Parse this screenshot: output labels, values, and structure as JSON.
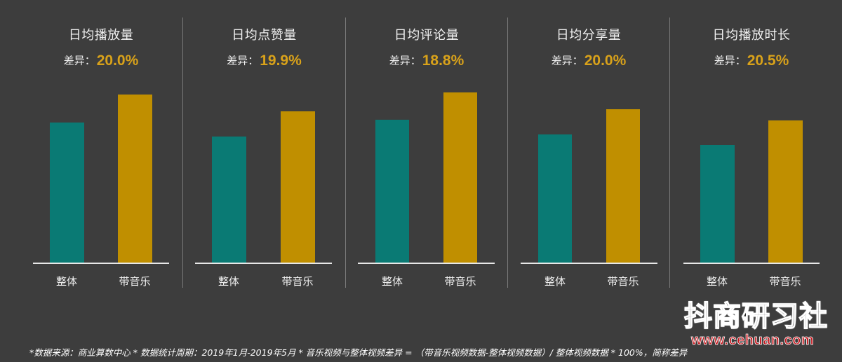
{
  "colors": {
    "background": "#3d3d3d",
    "overall_bar": "#0a7a74",
    "music_bar": "#c08f00",
    "diff_value": "#d9a21a",
    "text": "#f0f0f0"
  },
  "panels": [
    {
      "title": "日均播放量",
      "diff_label": "差异：",
      "diff_value": "20.0%",
      "categories": [
        "整体",
        "带音乐"
      ]
    },
    {
      "title": "日均点赞量",
      "diff_label": "差异：",
      "diff_value": "19.9%",
      "categories": [
        "整体",
        "带音乐"
      ]
    },
    {
      "title": "日均评论量",
      "diff_label": "差异：",
      "diff_value": "18.8%",
      "categories": [
        "整体",
        "带音乐"
      ]
    },
    {
      "title": "日均分享量",
      "diff_label": "差异：",
      "diff_value": "20.0%",
      "categories": [
        "整体",
        "带音乐"
      ]
    },
    {
      "title": "日均播放时长",
      "diff_label": "差异：",
      "diff_value": "20.5%",
      "categories": [
        "整体",
        "带音乐"
      ]
    }
  ],
  "footer": {
    "text": "*数据来源：商业算数中心 * 数据统计周期：2019年1月-2019年5月 * 音乐视频与整体视频差异 = （带音乐视频数据-整体视频数据）/ 整体视频数据 * 100%，简称差异"
  },
  "watermark": {
    "name": "抖商研习社",
    "url": "www.cehuan.com"
  },
  "chart_data": [
    {
      "type": "bar",
      "title": "日均播放量",
      "subtitle": "差异：20.0%",
      "categories": [
        "整体",
        "带音乐"
      ],
      "values": [
        201,
        241
      ],
      "unit": "relative bar height (no axis shown)",
      "colors": [
        "#0a7a74",
        "#c08f00"
      ],
      "xlabel": "",
      "ylabel": "",
      "grid": false,
      "legend": "none"
    },
    {
      "type": "bar",
      "title": "日均点赞量",
      "subtitle": "差异：19.9%",
      "categories": [
        "整体",
        "带音乐"
      ],
      "values": [
        181,
        217
      ],
      "unit": "relative bar height (no axis shown)",
      "colors": [
        "#0a7a74",
        "#c08f00"
      ],
      "xlabel": "",
      "ylabel": "",
      "grid": false,
      "legend": "none"
    },
    {
      "type": "bar",
      "title": "日均评论量",
      "subtitle": "差异：18.8%",
      "categories": [
        "整体",
        "带音乐"
      ],
      "values": [
        205,
        244
      ],
      "unit": "relative bar height (no axis shown)",
      "colors": [
        "#0a7a74",
        "#c08f00"
      ],
      "xlabel": "",
      "ylabel": "",
      "grid": false,
      "legend": "none"
    },
    {
      "type": "bar",
      "title": "日均分享量",
      "subtitle": "差异：20.0%",
      "categories": [
        "整体",
        "带音乐"
      ],
      "values": [
        184,
        220
      ],
      "unit": "relative bar height (no axis shown)",
      "colors": [
        "#0a7a74",
        "#c08f00"
      ],
      "xlabel": "",
      "ylabel": "",
      "grid": false,
      "legend": "none"
    },
    {
      "type": "bar",
      "title": "日均播放时长",
      "subtitle": "差异：20.5%",
      "categories": [
        "整体",
        "带音乐"
      ],
      "values": [
        169,
        204
      ],
      "unit": "relative bar height (no axis shown)",
      "colors": [
        "#0a7a74",
        "#c08f00"
      ],
      "xlabel": "",
      "ylabel": "",
      "grid": false,
      "legend": "none"
    }
  ]
}
